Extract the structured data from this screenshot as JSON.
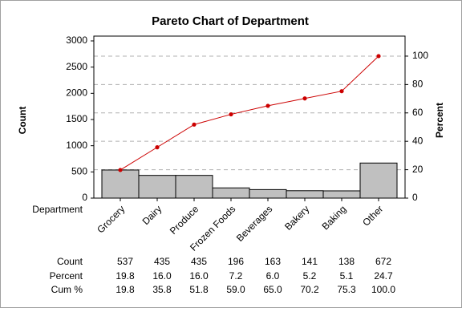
{
  "chart_data": {
    "type": "pareto",
    "title": "Pareto Chart of Department",
    "y_label": "Count",
    "y2_label": "Percent",
    "x_label": "Department",
    "categories": [
      "Grocery",
      "Dairy",
      "Produce",
      "Frozen Foods",
      "Beverages",
      "Bakery",
      "Baking",
      "Other"
    ],
    "series": [
      {
        "name": "Count",
        "values": [
          537,
          435,
          435,
          196,
          163,
          141,
          138,
          672
        ]
      },
      {
        "name": "Percent",
        "color": "#c0c0c0",
        "axis": "y2",
        "values": [
          19.8,
          16.0,
          16.0,
          7.2,
          6.0,
          5.2,
          5.1,
          24.7
        ],
        "value_labels": [
          "19.8",
          "16.0",
          "16.0",
          "7.2",
          "6.0",
          "5.2",
          "5.1",
          "24.7"
        ]
      },
      {
        "name": "Cum %",
        "color": "#cc0000",
        "axis": "y2",
        "values": [
          19.8,
          35.8,
          51.8,
          59.0,
          65.0,
          70.2,
          75.3,
          100.0
        ],
        "value_labels": [
          "19.8",
          "35.8",
          "51.8",
          "59.0",
          "65.0",
          "70.2",
          "75.3",
          "100.0"
        ]
      }
    ],
    "ylim": [
      0,
      3092
    ],
    "yticks": [
      0,
      500,
      1000,
      1500,
      2000,
      2500,
      3000
    ],
    "y2lim": [
      0,
      114.1
    ],
    "y2ticks": [
      0,
      20,
      40,
      60,
      80,
      100
    ],
    "grid": true
  }
}
